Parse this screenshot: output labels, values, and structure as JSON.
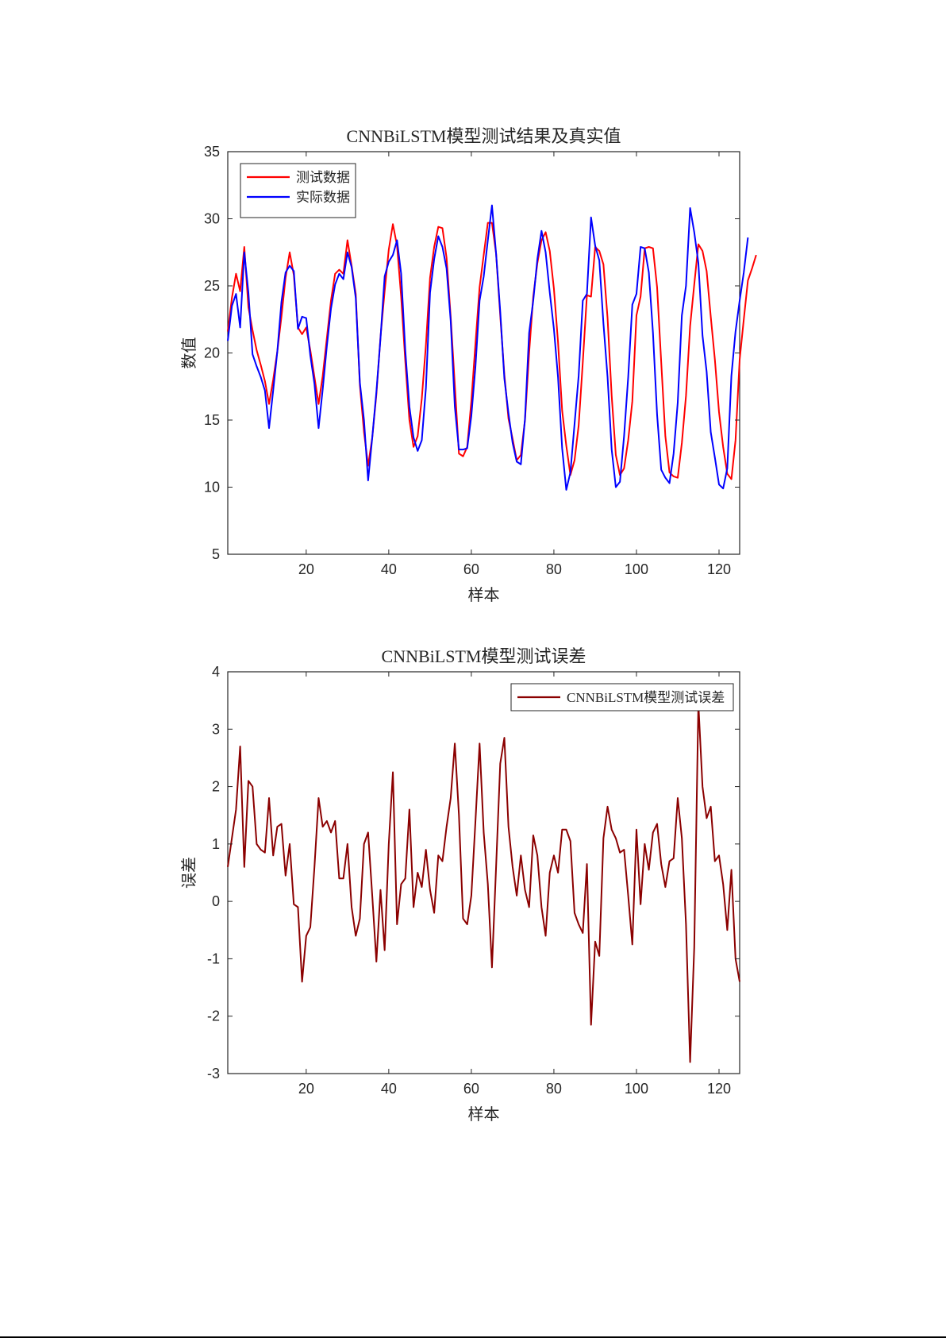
{
  "chart_data": [
    {
      "type": "line",
      "title": "CNNBiLSTM模型测试结果及真实值",
      "xlabel": "样本",
      "ylabel": "数值",
      "xlim": [
        1,
        125
      ],
      "ylim": [
        5,
        35
      ],
      "xticks": [
        20,
        40,
        60,
        80,
        100,
        120
      ],
      "yticks": [
        5,
        10,
        15,
        20,
        25,
        30,
        35
      ],
      "grid": false,
      "legend_position": "top-left",
      "series": [
        {
          "name": "测试数据",
          "color": "#ff0000",
          "values": [
            21.6,
            24.1,
            25.9,
            24.6,
            27.9,
            23.4,
            21.7,
            20.2,
            19.1,
            17.9,
            16.2,
            18.0,
            20.1,
            22.7,
            25.6,
            27.5,
            25.8,
            21.9,
            21.4,
            21.9,
            20.2,
            18.2,
            16.2,
            18.3,
            21.1,
            23.9,
            25.9,
            26.2,
            25.9,
            28.4,
            26.5,
            24.4,
            17.6,
            14.1,
            11.6,
            13.7,
            16.9,
            21.2,
            24.6,
            27.7,
            29.6,
            28.0,
            24.2,
            19.4,
            15.0,
            13.0,
            13.8,
            16.6,
            20.6,
            25.6,
            27.9,
            29.4,
            29.3,
            27.1,
            22.7,
            17.6,
            12.5,
            12.3,
            13.0,
            16.4,
            20.7,
            24.9,
            27.3,
            29.7,
            29.7,
            27.4,
            22.8,
            18.4,
            15.1,
            13.6,
            12.0,
            12.4,
            15.0,
            20.0,
            24.2,
            26.7,
            28.4,
            29.0,
            27.6,
            24.8,
            20.8,
            15.7,
            13.1,
            10.9,
            12.0,
            14.6,
            19.3,
            24.3,
            24.2,
            27.9,
            27.6,
            26.6,
            22.6,
            16.8,
            12.4,
            10.9,
            11.4,
            13.5,
            16.4,
            22.8,
            24.2,
            27.8,
            27.9,
            27.8,
            24.9,
            19.3,
            13.8,
            11.1,
            10.8,
            10.7,
            13.3,
            16.8,
            22.0,
            25.1,
            28.1,
            27.6,
            26.1,
            22.7,
            19.5,
            15.6,
            13.0,
            11.0,
            10.6,
            13.5,
            19.5,
            22.5,
            25.4,
            26.3,
            27.3
          ]
        },
        {
          "name": "实际数据",
          "color": "#0000ff",
          "values": [
            20.9,
            23.5,
            24.4,
            21.9,
            27.5,
            24.5,
            19.9,
            19.0,
            18.2,
            17.2,
            14.4,
            17.2,
            20.1,
            23.8,
            26.0,
            26.5,
            26.1,
            21.8,
            22.7,
            22.6,
            19.8,
            17.7,
            14.4,
            17.3,
            20.5,
            23.3,
            25.1,
            25.9,
            25.5,
            27.5,
            26.4,
            24.1,
            17.8,
            15.0,
            10.5,
            13.7,
            17.1,
            21.1,
            25.7,
            26.8,
            27.3,
            28.4,
            25.9,
            20.2,
            16.0,
            13.7,
            12.7,
            13.5,
            17.4,
            24.5,
            27.0,
            28.7,
            27.9,
            26.3,
            22.4,
            16.0,
            12.8,
            12.8,
            12.9,
            15.3,
            19.0,
            23.9,
            25.7,
            28.4,
            31.0,
            27.4,
            23.1,
            18.1,
            15.5,
            13.3,
            11.9,
            11.7,
            15.1,
            21.5,
            23.9,
            27.0,
            29.1,
            27.5,
            24.5,
            21.8,
            18.2,
            12.9,
            9.8,
            11.1,
            14.7,
            18.3,
            23.9,
            24.4,
            30.1,
            28.0,
            26.9,
            22.2,
            18.2,
            12.8,
            10.0,
            10.4,
            13.8,
            18.2,
            23.6,
            24.4,
            27.9,
            27.8,
            26.0,
            21.5,
            15.4,
            11.3,
            10.7,
            10.3,
            12.5,
            16.3,
            22.8,
            25.0,
            30.8,
            29.0,
            26.7,
            21.3,
            18.6,
            14.1,
            12.2,
            10.2,
            9.9,
            11.4,
            18.3,
            21.6,
            23.9,
            26.0,
            28.6
          ]
        }
      ]
    },
    {
      "type": "line",
      "title": "CNNBiLSTM模型测试误差",
      "xlabel": "样本",
      "ylabel": "误差",
      "xlim": [
        1,
        125
      ],
      "ylim": [
        -3,
        4
      ],
      "xticks": [
        20,
        40,
        60,
        80,
        100,
        120
      ],
      "yticks": [
        -3,
        -2,
        -1,
        0,
        1,
        2,
        3,
        4
      ],
      "grid": false,
      "legend_position": "top-right",
      "series": [
        {
          "name": "CNNBiLSTM模型测试误差",
          "color": "#8b0000",
          "values": [
            0.6,
            1.1,
            1.6,
            2.7,
            0.6,
            2.1,
            2.0,
            1.0,
            0.9,
            0.85,
            1.8,
            0.8,
            1.3,
            1.35,
            0.45,
            1.0,
            -0.05,
            -0.1,
            -1.4,
            -0.6,
            -0.45,
            0.6,
            1.8,
            1.3,
            1.4,
            1.2,
            1.4,
            0.4,
            0.4,
            1.0,
            -0.1,
            -0.6,
            -0.3,
            1.0,
            1.2,
            0.1,
            -1.05,
            0.2,
            -0.85,
            1.0,
            2.25,
            -0.4,
            0.3,
            0.4,
            1.6,
            -0.1,
            0.5,
            0.25,
            0.9,
            0.2,
            -0.2,
            0.8,
            0.7,
            1.3,
            1.8,
            2.75,
            1.5,
            -0.3,
            -0.4,
            0.1,
            1.4,
            2.75,
            1.2,
            0.3,
            -1.15,
            0.6,
            2.4,
            2.85,
            1.3,
            0.6,
            0.1,
            0.8,
            0.2,
            -0.1,
            1.15,
            0.8,
            -0.1,
            -0.6,
            0.5,
            0.8,
            0.5,
            1.25,
            1.25,
            1.05,
            -0.2,
            -0.4,
            -0.55,
            0.65,
            -2.15,
            -0.7,
            -0.95,
            1.1,
            1.65,
            1.25,
            1.1,
            0.85,
            0.9,
            0.1,
            -0.75,
            1.25,
            -0.05,
            1.0,
            0.55,
            1.2,
            1.35,
            0.65,
            0.25,
            0.7,
            0.75,
            1.8,
            1.1,
            -0.4,
            -2.8,
            -0.8,
            3.45,
            2.0,
            1.45,
            1.65,
            0.7,
            0.8,
            0.3,
            -0.5,
            0.55,
            -1.0,
            -1.4
          ]
        }
      ]
    }
  ]
}
